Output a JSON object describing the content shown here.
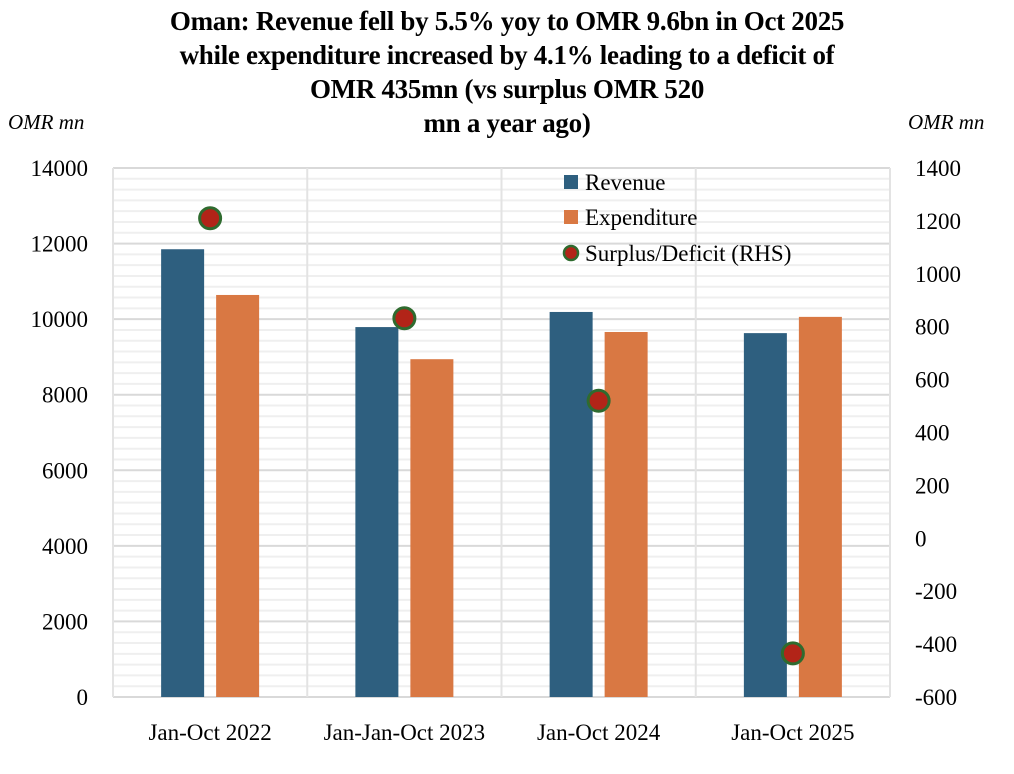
{
  "chart_data": {
    "type": "bar",
    "title_lines": [
      "Oman: Revenue fell by 5.5% yoy to OMR 9.6bn in Oct 2025",
      "while expenditure increased by 4.1% leading to a deficit of",
      "OMR 435mn (vs surplus OMR 520",
      "mn a year ago)"
    ],
    "ylabel": "OMR mn",
    "y2label": "OMR mn",
    "categories": [
      "Jan-Oct 2022",
      "Jan-Jan-Oct 2023",
      "Jan-Oct 2024",
      "Jan-Oct 2025"
    ],
    "series": [
      {
        "name": "Revenue",
        "type": "bar",
        "axis": "left",
        "color": "#2E5F7F",
        "values": [
          11850,
          9790,
          10190,
          9630
        ]
      },
      {
        "name": "Expenditure",
        "type": "bar",
        "axis": "left",
        "color": "#D97843",
        "values": [
          10640,
          8940,
          9660,
          10060
        ]
      },
      {
        "name": "Surplus/Deficit (RHS)",
        "type": "scatter",
        "axis": "right",
        "color": "#B22418",
        "edge_color": "#2F6B2F",
        "values": [
          1210,
          832,
          520,
          -435
        ]
      }
    ],
    "ylim": [
      0,
      14000
    ],
    "yticks": [
      0,
      2000,
      4000,
      6000,
      8000,
      10000,
      12000,
      14000
    ],
    "y2lim": [
      -600,
      1400
    ],
    "y2ticks": [
      -600,
      -400,
      -200,
      0,
      200,
      400,
      600,
      800,
      1000,
      1200,
      1400
    ],
    "grid": true,
    "legend_position": "top-right"
  }
}
